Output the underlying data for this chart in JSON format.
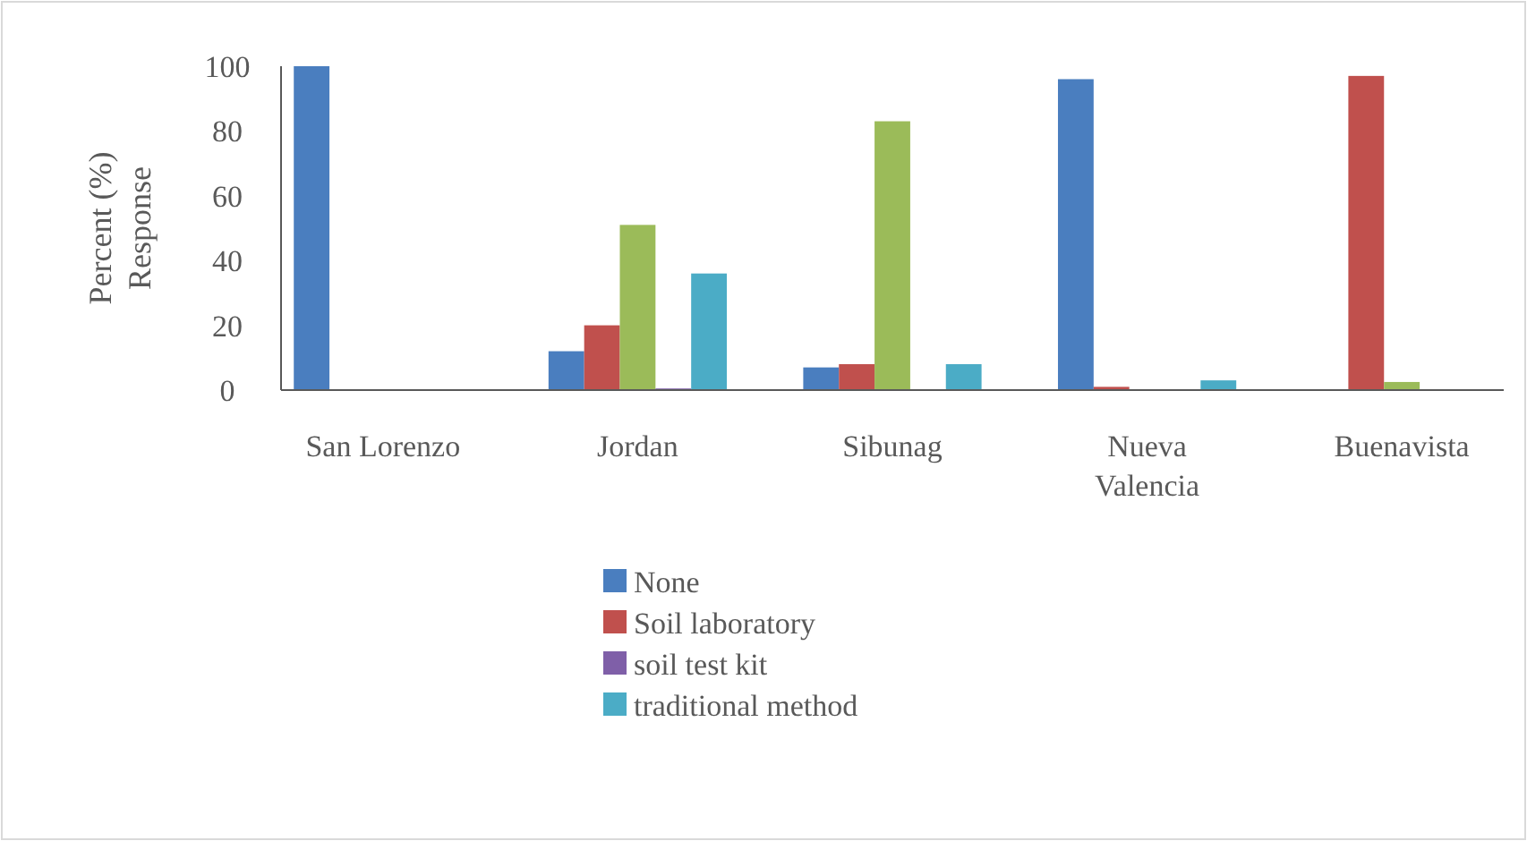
{
  "chart_data": {
    "type": "bar",
    "ylabel": "Percent (%) Response",
    "categories": [
      "San Lorenzo",
      "Jordan",
      "Sibunag",
      "Nueva Valencia",
      "Buenavista"
    ],
    "series": [
      {
        "name": "None",
        "color": "#4a7ebf",
        "values": [
          100,
          12,
          7,
          96,
          0
        ]
      },
      {
        "name": "Soil laboratory",
        "color": "#c0504d",
        "values": [
          0,
          20,
          8,
          1,
          97
        ]
      },
      {
        "color": "#9bbb59",
        "values": [
          0,
          51,
          83,
          0,
          2.5
        ]
      },
      {
        "name": "soil test kit",
        "color": "#7f5fa8",
        "values": [
          0,
          0.5,
          0,
          0,
          0
        ]
      },
      {
        "name": "traditional method",
        "color": "#4bacc6",
        "values": [
          0,
          36,
          8,
          3,
          0
        ]
      }
    ],
    "ylim": [
      0,
      100
    ],
    "yticks": [
      0,
      20,
      40,
      60,
      80,
      100
    ],
    "legend": "bottom"
  }
}
